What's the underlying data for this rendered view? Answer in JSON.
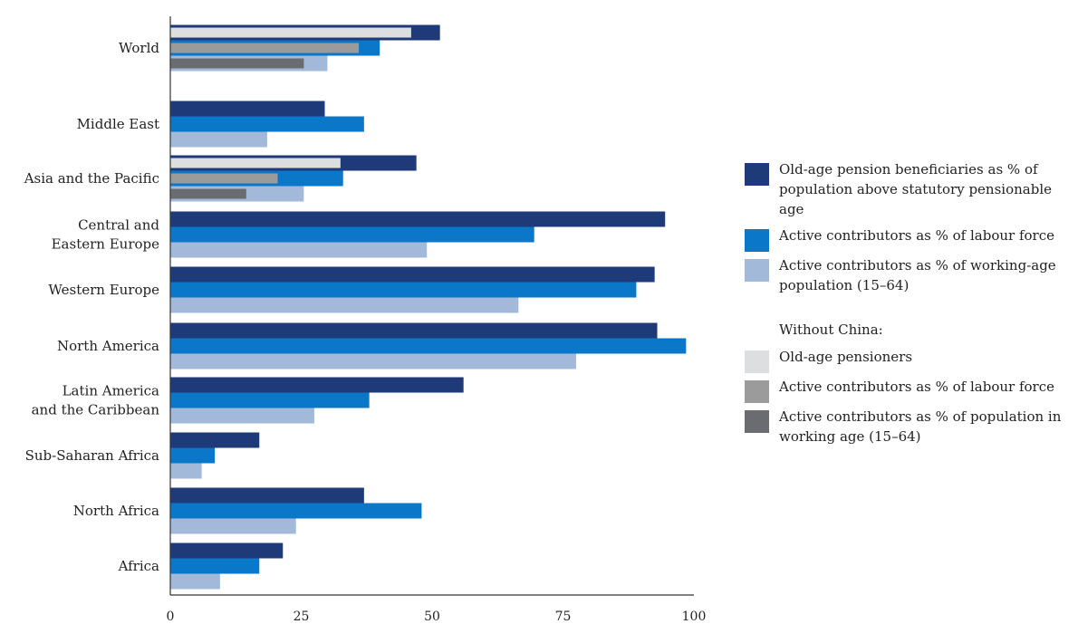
{
  "chart_data": {
    "type": "bar",
    "orientation": "horizontal",
    "xlim": [
      0,
      100
    ],
    "x_ticks": [
      "0",
      "25",
      "50",
      "75",
      "100"
    ],
    "grid": false,
    "legend_position": "right",
    "legend_heading": "Without China:",
    "categories": [
      {
        "label": [
          "World"
        ],
        "bars": [
          {
            "series": "wc_pensioners",
            "value": 46
          },
          {
            "series": "beneficiaries",
            "value": 51.5
          },
          {
            "series": "wc_labour",
            "value": 36
          },
          {
            "series": "labour",
            "value": 40
          },
          {
            "series": "wc_working_age",
            "value": 25.5
          },
          {
            "series": "working_age",
            "value": 30
          }
        ]
      },
      {
        "label": [
          "Middle East"
        ],
        "bars": [
          {
            "series": "beneficiaries",
            "value": 29.5
          },
          {
            "series": "labour",
            "value": 37
          },
          {
            "series": "working_age",
            "value": 18.5
          }
        ]
      },
      {
        "label": [
          "Asia and the Pacific"
        ],
        "bars": [
          {
            "series": "wc_pensioners",
            "value": 32.5
          },
          {
            "series": "beneficiaries",
            "value": 47
          },
          {
            "series": "wc_labour",
            "value": 20.5
          },
          {
            "series": "labour",
            "value": 33
          },
          {
            "series": "wc_working_age",
            "value": 14.5
          },
          {
            "series": "working_age",
            "value": 25.5
          }
        ]
      },
      {
        "label": [
          "Central and",
          "Eastern Europe"
        ],
        "bars": [
          {
            "series": "beneficiaries",
            "value": 94.5
          },
          {
            "series": "labour",
            "value": 69.5
          },
          {
            "series": "working_age",
            "value": 49
          }
        ]
      },
      {
        "label": [
          "Western Europe"
        ],
        "bars": [
          {
            "series": "beneficiaries",
            "value": 92.5
          },
          {
            "series": "labour",
            "value": 89
          },
          {
            "series": "working_age",
            "value": 66.5
          }
        ]
      },
      {
        "label": [
          "North America"
        ],
        "bars": [
          {
            "series": "beneficiaries",
            "value": 93
          },
          {
            "series": "labour",
            "value": 98.5
          },
          {
            "series": "working_age",
            "value": 77.5
          }
        ]
      },
      {
        "label": [
          "Latin America",
          "and the Caribbean"
        ],
        "bars": [
          {
            "series": "beneficiaries",
            "value": 56
          },
          {
            "series": "labour",
            "value": 38
          },
          {
            "series": "working_age",
            "value": 27.5
          }
        ]
      },
      {
        "label": [
          "Sub-Saharan Africa"
        ],
        "bars": [
          {
            "series": "beneficiaries",
            "value": 17
          },
          {
            "series": "labour",
            "value": 8.5
          },
          {
            "series": "working_age",
            "value": 6
          }
        ]
      },
      {
        "label": [
          "North Africa"
        ],
        "bars": [
          {
            "series": "beneficiaries",
            "value": 37
          },
          {
            "series": "labour",
            "value": 48
          },
          {
            "series": "working_age",
            "value": 24
          }
        ]
      },
      {
        "label": [
          "Africa"
        ],
        "bars": [
          {
            "series": "beneficiaries",
            "value": 21.5
          },
          {
            "series": "labour",
            "value": 17
          },
          {
            "series": "working_age",
            "value": 9.5
          }
        ]
      }
    ],
    "series": [
      {
        "id": "beneficiaries",
        "name": "Old-age pension beneficiaries as % of population above statutory pensionable age",
        "color": "#1f3a78",
        "group": "main"
      },
      {
        "id": "labour",
        "name": "Active contributors as % of labour force",
        "color": "#0b77c9",
        "group": "main"
      },
      {
        "id": "working_age",
        "name": "Active contributors as % of working-age population (15–64)",
        "color": "#a3b9da",
        "group": "main"
      },
      {
        "id": "wc_pensioners",
        "name": "Old-age pensioners",
        "color": "#dcdee0",
        "group": "without_china"
      },
      {
        "id": "wc_labour",
        "name": "Active contributors as % of labour force",
        "color": "#9b9b9b",
        "group": "without_china"
      },
      {
        "id": "wc_working_age",
        "name": "Active contributors as % of population in working age (15–64)",
        "color": "#6a6c70",
        "group": "without_china"
      }
    ]
  }
}
